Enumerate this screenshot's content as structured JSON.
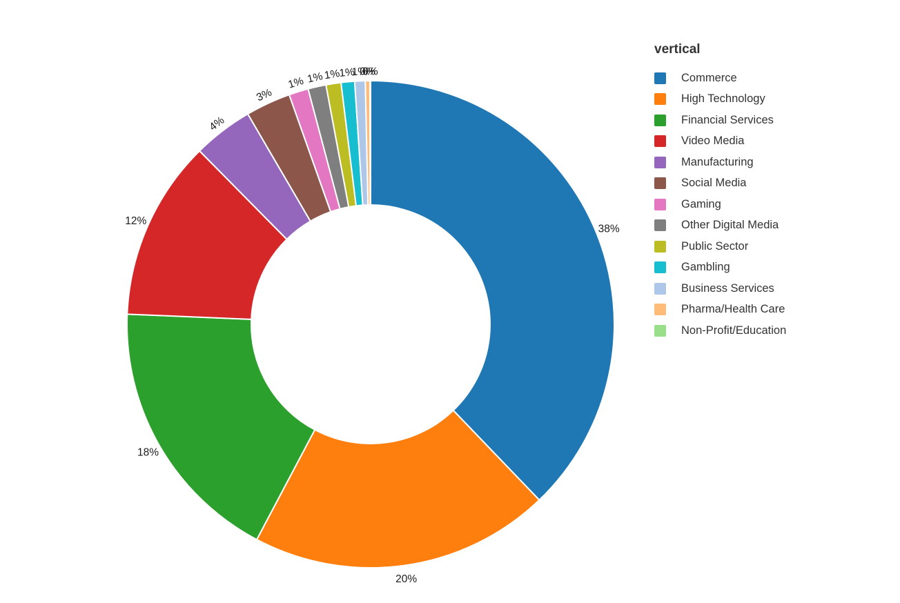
{
  "chart_data": {
    "type": "pie",
    "subtype": "donut",
    "title": "",
    "legend_title": "vertical",
    "legend_position": "right",
    "donut_hole_ratio": 0.49,
    "background_color": "#ffffff",
    "label_text_color": "#1a1a1a",
    "legend_text_color": "#333333",
    "slice_border_color": "#ffffff",
    "categories": [
      "Commerce",
      "High Technology",
      "Financial Services",
      "Video Media",
      "Manufacturing",
      "Social Media",
      "Gaming",
      "Other Digital Media",
      "Public Sector",
      "Gambling",
      "Business Services",
      "Pharma/Health Care",
      "Non-Profit/Education"
    ],
    "values": [
      38,
      20,
      18,
      12,
      4,
      3,
      1.3,
      1.2,
      1.0,
      0.9,
      0.7,
      0.3,
      0.05
    ],
    "display_labels": [
      "38%",
      "20%",
      "18%",
      "12%",
      "4%",
      "3%",
      "1%",
      "1%",
      "1%",
      "1%",
      "1%",
      "0%",
      "0%"
    ],
    "colors": [
      "#1f77b4",
      "#ff7f0e",
      "#2ca02c",
      "#d62728",
      "#9467bd",
      "#8c564b",
      "#e377c2",
      "#7f7f7f",
      "#bcbd22",
      "#17becf",
      "#aec7e8",
      "#ffbb78",
      "#98df8a"
    ]
  }
}
